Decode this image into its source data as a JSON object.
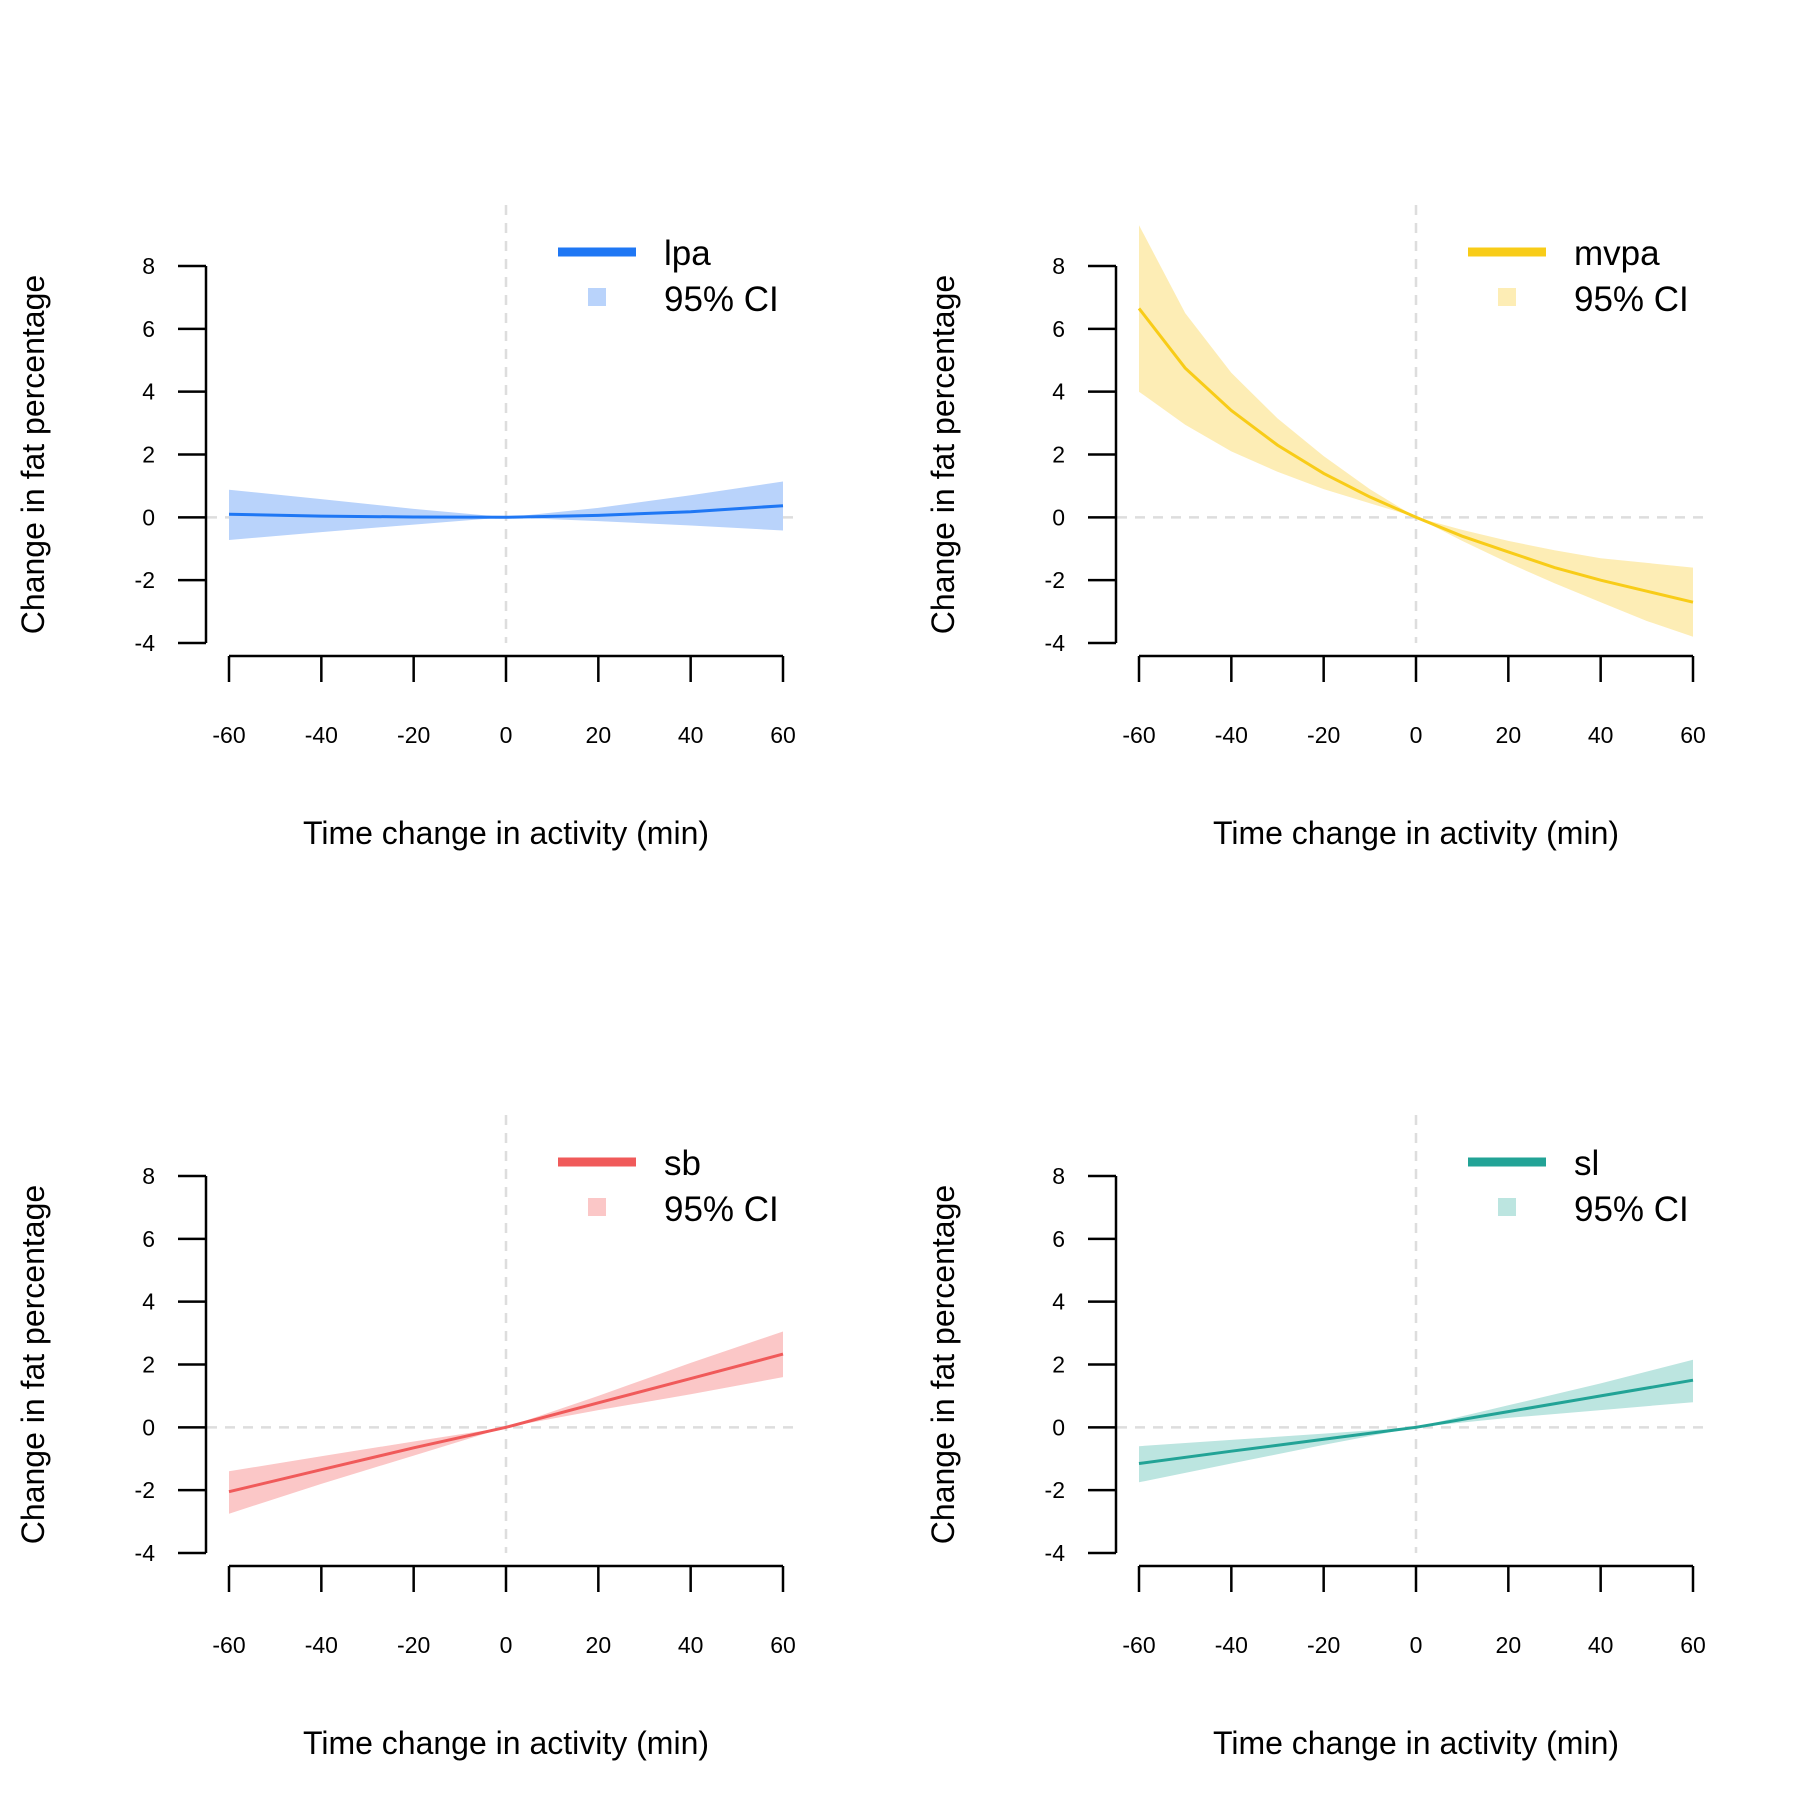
{
  "chart_data": [
    {
      "type": "line",
      "series_key": "lpa",
      "color": "#1f77f4",
      "band_color": "#b9d3fb",
      "xlabel": "Time change in activity (min)",
      "ylabel": "Change in fat percentage",
      "xlim": [
        -60,
        60
      ],
      "ylim": [
        -4,
        8
      ],
      "x_ticks": [
        "-60",
        "-40",
        "-20",
        "0",
        "20",
        "40",
        "60"
      ],
      "y_ticks": [
        "-4",
        "-2",
        "0",
        "2",
        "4",
        "6",
        "8"
      ],
      "legend": {
        "position": "top-right",
        "series": "lpa",
        "band": "95% CI"
      },
      "x": [
        -60,
        -40,
        -20,
        0,
        20,
        40,
        60
      ],
      "y": [
        0.1,
        0.04,
        0.01,
        0.0,
        0.06,
        0.18,
        0.37
      ],
      "ci_lower": [
        -0.72,
        -0.47,
        -0.23,
        0.0,
        -0.12,
        -0.26,
        -0.42
      ],
      "ci_upper": [
        0.88,
        0.58,
        0.27,
        0.0,
        0.3,
        0.7,
        1.14
      ]
    },
    {
      "type": "line",
      "series_key": "mvpa",
      "color": "#f8cc18",
      "band_color": "#fdedb5",
      "xlabel": "Time change in activity (min)",
      "ylabel": "Change in fat percentage",
      "xlim": [
        -60,
        60
      ],
      "ylim": [
        -4,
        8
      ],
      "x_ticks": [
        "-60",
        "-40",
        "-20",
        "0",
        "20",
        "40",
        "60"
      ],
      "y_ticks": [
        "-4",
        "-2",
        "0",
        "2",
        "4",
        "6",
        "8"
      ],
      "legend": {
        "position": "top-right",
        "series": "mvpa",
        "band": "95% CI"
      },
      "x": [
        -60,
        -50,
        -40,
        -30,
        -20,
        -10,
        0,
        10,
        20,
        30,
        40,
        50,
        60
      ],
      "y": [
        6.65,
        4.75,
        3.4,
        2.3,
        1.4,
        0.65,
        0.0,
        -0.6,
        -1.1,
        -1.6,
        -2.0,
        -2.35,
        -2.7
      ],
      "ci_lower": [
        4.0,
        2.95,
        2.1,
        1.45,
        0.9,
        0.45,
        0.0,
        -0.75,
        -1.45,
        -2.1,
        -2.7,
        -3.3,
        -3.8
      ],
      "ci_upper": [
        9.3,
        6.5,
        4.6,
        3.15,
        1.95,
        0.9,
        0.0,
        -0.4,
        -0.75,
        -1.05,
        -1.3,
        -1.45,
        -1.6
      ]
    },
    {
      "type": "line",
      "series_key": "sb",
      "color": "#f05a5a",
      "band_color": "#fbc7c7",
      "xlabel": "Time change in activity (min)",
      "ylabel": "Change in fat percentage",
      "xlim": [
        -60,
        60
      ],
      "ylim": [
        -4,
        8
      ],
      "x_ticks": [
        "-60",
        "-40",
        "-20",
        "0",
        "20",
        "40",
        "60"
      ],
      "y_ticks": [
        "-4",
        "-2",
        "0",
        "2",
        "4",
        "6",
        "8"
      ],
      "legend": {
        "position": "top-right",
        "series": "sb",
        "band": "95% CI"
      },
      "x": [
        -60,
        -40,
        -20,
        0,
        20,
        40,
        60
      ],
      "y": [
        -2.05,
        -1.35,
        -0.65,
        0.0,
        0.78,
        1.55,
        2.33
      ],
      "ci_lower": [
        -2.75,
        -1.8,
        -0.9,
        0.0,
        0.55,
        1.05,
        1.6
      ],
      "ci_upper": [
        -1.4,
        -0.92,
        -0.45,
        0.0,
        1.0,
        2.05,
        3.05
      ]
    },
    {
      "type": "line",
      "series_key": "sl",
      "color": "#22a396",
      "band_color": "#bce5e0",
      "xlabel": "Time change in activity (min)",
      "ylabel": "Change in fat percentage",
      "xlim": [
        -60,
        60
      ],
      "ylim": [
        -4,
        8
      ],
      "x_ticks": [
        "-60",
        "-40",
        "-20",
        "0",
        "20",
        "40",
        "60"
      ],
      "y_ticks": [
        "-4",
        "-2",
        "0",
        "2",
        "4",
        "6",
        "8"
      ],
      "legend": {
        "position": "top-right",
        "series": "sl",
        "band": "95% CI"
      },
      "x": [
        -60,
        -40,
        -20,
        0,
        20,
        40,
        60
      ],
      "y": [
        -1.15,
        -0.76,
        -0.38,
        0.0,
        0.5,
        1.0,
        1.5
      ],
      "ci_lower": [
        -1.75,
        -1.15,
        -0.56,
        0.0,
        0.3,
        0.55,
        0.8
      ],
      "ci_upper": [
        -0.6,
        -0.4,
        -0.2,
        0.0,
        0.7,
        1.4,
        2.15
      ]
    }
  ]
}
